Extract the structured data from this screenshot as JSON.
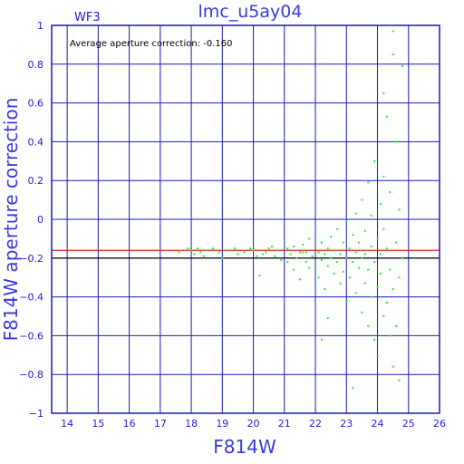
{
  "chart_data": {
    "type": "scatter",
    "title": "lmc_u5ay04",
    "chip_label": "WF3",
    "annotation": "Average aperture correction: -0.160",
    "xlabel": "F814W",
    "ylabel": "F814W aperture correction",
    "xlim": [
      13.5,
      26
    ],
    "ylim": [
      -1,
      1
    ],
    "xticks": [
      14,
      15,
      16,
      17,
      18,
      19,
      20,
      21,
      22,
      23,
      24,
      25,
      26
    ],
    "yticks": [
      -1,
      -0.8,
      -0.6,
      -0.4,
      -0.2,
      0,
      0.2,
      0.4,
      0.6,
      0.8,
      1
    ],
    "ytick_labels": [
      "−1",
      "−0.8",
      "−0.6",
      "−0.4",
      "−0.2",
      "0",
      "0.2",
      "0.4",
      "0.6",
      "0.8",
      "1"
    ],
    "grid": true,
    "reference_lines": [
      {
        "y": -0.16,
        "color": "#e02020"
      },
      {
        "y": -0.2,
        "color": "#000000"
      }
    ],
    "colors": {
      "frame": "#1a1ab8",
      "grid": "#1a1ab8",
      "points": "#22ee22"
    },
    "points": [
      [
        17.6,
        -0.17
      ],
      [
        17.9,
        -0.15
      ],
      [
        18.0,
        -0.16
      ],
      [
        18.1,
        -0.18
      ],
      [
        18.2,
        -0.15
      ],
      [
        18.3,
        -0.17
      ],
      [
        18.4,
        -0.19
      ],
      [
        18.5,
        -0.16
      ],
      [
        18.7,
        -0.15
      ],
      [
        18.9,
        -0.17
      ],
      [
        19.0,
        -0.2
      ],
      [
        19.2,
        -0.16
      ],
      [
        19.4,
        -0.15
      ],
      [
        19.5,
        -0.18
      ],
      [
        19.7,
        -0.17
      ],
      [
        19.9,
        -0.15
      ],
      [
        20.0,
        -0.16
      ],
      [
        20.1,
        -0.19
      ],
      [
        20.2,
        -0.29
      ],
      [
        20.3,
        -0.18
      ],
      [
        20.4,
        -0.17
      ],
      [
        20.5,
        -0.15
      ],
      [
        20.6,
        -0.14
      ],
      [
        20.7,
        -0.19
      ],
      [
        20.8,
        -0.16
      ],
      [
        20.9,
        -0.21
      ],
      [
        21.0,
        -0.12
      ],
      [
        21.1,
        -0.15
      ],
      [
        21.1,
        -0.22
      ],
      [
        21.2,
        -0.18
      ],
      [
        21.3,
        -0.14
      ],
      [
        21.3,
        -0.26
      ],
      [
        21.4,
        -0.2
      ],
      [
        21.5,
        -0.17
      ],
      [
        21.5,
        -0.31
      ],
      [
        21.6,
        -0.13
      ],
      [
        21.7,
        -0.22
      ],
      [
        21.7,
        -0.17
      ],
      [
        21.8,
        -0.1
      ],
      [
        21.8,
        -0.25
      ],
      [
        21.9,
        -0.19
      ],
      [
        22.0,
        -0.14
      ],
      [
        22.0,
        -0.23
      ],
      [
        22.1,
        -0.17
      ],
      [
        22.1,
        -0.3
      ],
      [
        22.2,
        -0.12
      ],
      [
        22.2,
        -0.21
      ],
      [
        22.3,
        -0.18
      ],
      [
        22.3,
        -0.36
      ],
      [
        22.4,
        -0.15
      ],
      [
        22.4,
        -0.24
      ],
      [
        22.5,
        -0.2
      ],
      [
        22.5,
        -0.09
      ],
      [
        22.6,
        -0.28
      ],
      [
        22.6,
        -0.16
      ],
      [
        22.7,
        -0.22
      ],
      [
        22.7,
        -0.05
      ],
      [
        22.8,
        -0.33
      ],
      [
        22.8,
        -0.18
      ],
      [
        22.9,
        -0.12
      ],
      [
        22.9,
        -0.27
      ],
      [
        23.0,
        -0.2
      ],
      [
        23.0,
        -0.42
      ],
      [
        23.0,
        -0.01
      ],
      [
        23.1,
        -0.15
      ],
      [
        23.1,
        -0.3
      ],
      [
        23.2,
        -0.22
      ],
      [
        23.2,
        -0.08
      ],
      [
        23.3,
        -0.38
      ],
      [
        23.3,
        -0.17
      ],
      [
        23.3,
        0.03
      ],
      [
        23.4,
        -0.25
      ],
      [
        23.4,
        -0.12
      ],
      [
        23.5,
        -0.48
      ],
      [
        23.5,
        -0.2
      ],
      [
        23.5,
        0.1
      ],
      [
        23.6,
        -0.33
      ],
      [
        23.6,
        -0.06
      ],
      [
        23.6,
        -0.18
      ],
      [
        23.7,
        -0.55
      ],
      [
        23.7,
        -0.26
      ],
      [
        23.7,
        0.19
      ],
      [
        23.8,
        -0.14
      ],
      [
        23.8,
        -0.4
      ],
      [
        23.8,
        0.02
      ],
      [
        23.9,
        -0.22
      ],
      [
        23.9,
        -0.62
      ],
      [
        23.9,
        0.3
      ],
      [
        24.0,
        -0.1
      ],
      [
        24.0,
        -0.35
      ],
      [
        24.0,
        -0.7
      ],
      [
        24.1,
        0.08
      ],
      [
        24.1,
        -0.28
      ],
      [
        24.1,
        -0.18
      ],
      [
        24.2,
        -0.5
      ],
      [
        24.2,
        0.22
      ],
      [
        24.2,
        -0.05
      ],
      [
        24.2,
        0.65
      ],
      [
        24.3,
        -0.43
      ],
      [
        24.3,
        -0.15
      ],
      [
        24.3,
        0.53
      ],
      [
        24.4,
        -0.6
      ],
      [
        24.4,
        -0.26
      ],
      [
        24.4,
        0.14
      ],
      [
        24.5,
        -0.76
      ],
      [
        24.5,
        -0.36
      ],
      [
        24.5,
        0.97
      ],
      [
        24.5,
        0.85
      ],
      [
        24.6,
        -0.12
      ],
      [
        24.6,
        -0.55
      ],
      [
        24.6,
        0.4
      ],
      [
        24.7,
        -0.3
      ],
      [
        24.7,
        -0.83
      ],
      [
        24.7,
        0.05
      ],
      [
        24.8,
        0.79
      ],
      [
        24.8,
        -0.2
      ],
      [
        23.2,
        -0.87
      ],
      [
        22.4,
        -0.51
      ],
      [
        21.6,
        -0.17
      ],
      [
        22.2,
        -0.62
      ]
    ]
  }
}
